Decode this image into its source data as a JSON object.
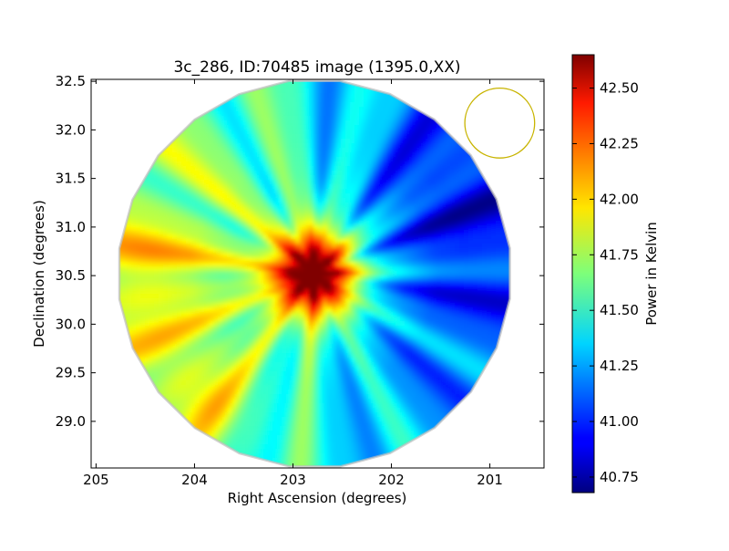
{
  "chart_data": {
    "type": "heatmap",
    "title": "3c_286, ID:70485 image (1395.0,XX)",
    "xlabel": "Right Ascension (degrees)",
    "ylabel": "Declination (degrees)",
    "xlim": [
      205.05,
      200.45
    ],
    "ylim": [
      28.52,
      32.52
    ],
    "x_ticks": [
      205,
      204,
      203,
      202,
      201
    ],
    "x_tick_labels": [
      "205",
      "204",
      "203",
      "202",
      "201"
    ],
    "y_ticks": [
      29.0,
      29.5,
      30.0,
      30.5,
      31.0,
      31.5,
      32.0,
      32.5
    ],
    "y_tick_labels": [
      "29.0",
      "29.5",
      "30.0",
      "30.5",
      "31.0",
      "31.5",
      "32.0",
      "32.5"
    ],
    "colorbar": {
      "label": "Power in Kelvin",
      "range": [
        40.68,
        42.65
      ],
      "ticks": [
        40.75,
        41.0,
        41.25,
        41.5,
        41.75,
        42.0,
        42.25,
        42.5
      ],
      "tick_labels": [
        "40.75",
        "41.00",
        "41.25",
        "41.50",
        "41.75",
        "42.00",
        "42.25",
        "42.50"
      ],
      "colormap": "jet"
    },
    "field": {
      "center_ra": 202.78,
      "center_dec": 30.52,
      "radius_deg": 2.0,
      "peak_ra": 202.78,
      "peak_dec": 30.52,
      "peak_value": 42.6,
      "background_min": 40.7
    },
    "beam_marker": {
      "ra": 200.9,
      "dec": 32.07,
      "radius_deg": 0.36,
      "color": "#c8b400"
    }
  }
}
